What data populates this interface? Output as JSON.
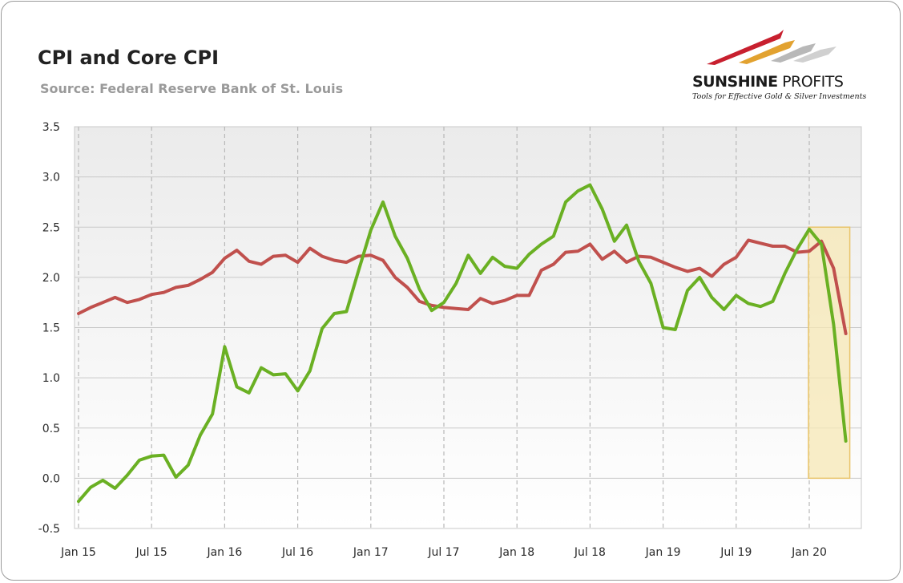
{
  "title": "CPI and Core CPI",
  "subtitle": "Source: Federal Reserve Bank of St. Louis",
  "logo": {
    "name_bold": "SUNSHINE",
    "name_regular": " PROFITS",
    "tagline": "Tools for Effective Gold & Silver Investments",
    "colors": [
      "#c8202f",
      "#e2a230",
      "#b0b0b0"
    ]
  },
  "chart_data": {
    "type": "line",
    "title": "CPI and Core CPI",
    "xlabel": "",
    "ylabel": "",
    "ylim": [
      -0.5,
      3.5
    ],
    "yticks": [
      "3.5",
      "3.0",
      "2.5",
      "2.0",
      "1.5",
      "1.0",
      "0.5",
      "0.0",
      "-0.5"
    ],
    "xticks": [
      "Jan 15",
      "Jul 15",
      "Jan 16",
      "Jul 16",
      "Jan 17",
      "Jul 17",
      "Jan 18",
      "Jul 18",
      "Jan 19",
      "Jul 19",
      "Jan 20"
    ],
    "grid": true,
    "legend": "none",
    "colors": {
      "cpi": "#6ab023",
      "core_cpi": "#c0504d",
      "highlight_fill": "#f7e8b5",
      "highlight_border": "#e9c46a",
      "plot_bg": "#f2f2f2"
    },
    "highlight": {
      "x_start": "2020-01",
      "x_end": "2020-04",
      "y_start": 0.0,
      "y_end": 2.5
    },
    "x": [
      "2015-01",
      "2015-02",
      "2015-03",
      "2015-04",
      "2015-05",
      "2015-06",
      "2015-07",
      "2015-08",
      "2015-09",
      "2015-10",
      "2015-11",
      "2015-12",
      "2016-01",
      "2016-02",
      "2016-03",
      "2016-04",
      "2016-05",
      "2016-06",
      "2016-07",
      "2016-08",
      "2016-09",
      "2016-10",
      "2016-11",
      "2016-12",
      "2017-01",
      "2017-02",
      "2017-03",
      "2017-04",
      "2017-05",
      "2017-06",
      "2017-07",
      "2017-08",
      "2017-09",
      "2017-10",
      "2017-11",
      "2017-12",
      "2018-01",
      "2018-02",
      "2018-03",
      "2018-04",
      "2018-05",
      "2018-06",
      "2018-07",
      "2018-08",
      "2018-09",
      "2018-10",
      "2018-11",
      "2018-12",
      "2019-01",
      "2019-02",
      "2019-03",
      "2019-04",
      "2019-05",
      "2019-06",
      "2019-07",
      "2019-08",
      "2019-09",
      "2019-10",
      "2019-11",
      "2019-12",
      "2020-01",
      "2020-02",
      "2020-03",
      "2020-04"
    ],
    "series": [
      {
        "key": "cpi",
        "values": [
          -0.23,
          -0.09,
          -0.02,
          -0.1,
          0.03,
          0.18,
          0.22,
          0.23,
          0.01,
          0.13,
          0.43,
          0.64,
          1.31,
          0.91,
          0.85,
          1.1,
          1.03,
          1.04,
          0.87,
          1.07,
          1.49,
          1.64,
          1.66,
          2.07,
          2.47,
          2.75,
          2.41,
          2.19,
          1.88,
          1.67,
          1.75,
          1.94,
          2.22,
          2.04,
          2.2,
          2.11,
          2.09,
          2.23,
          2.33,
          2.41,
          2.75,
          2.86,
          2.92,
          2.68,
          2.36,
          2.52,
          2.16,
          1.94,
          1.5,
          1.48,
          1.87,
          2.0,
          1.8,
          1.68,
          1.82,
          1.74,
          1.71,
          1.76,
          2.04,
          2.28,
          2.48,
          2.33,
          1.53,
          0.37
        ]
      },
      {
        "key": "core_cpi",
        "values": [
          1.64,
          1.7,
          1.75,
          1.8,
          1.75,
          1.78,
          1.83,
          1.85,
          1.9,
          1.92,
          1.98,
          2.05,
          2.19,
          2.27,
          2.16,
          2.13,
          2.21,
          2.22,
          2.15,
          2.29,
          2.21,
          2.17,
          2.15,
          2.21,
          2.22,
          2.17,
          2.0,
          1.9,
          1.76,
          1.72,
          1.7,
          1.69,
          1.68,
          1.79,
          1.74,
          1.77,
          1.82,
          1.82,
          2.07,
          2.13,
          2.25,
          2.26,
          2.33,
          2.18,
          2.26,
          2.15,
          2.21,
          2.2,
          2.15,
          2.1,
          2.06,
          2.09,
          2.01,
          2.13,
          2.2,
          2.37,
          2.34,
          2.31,
          2.31,
          2.25,
          2.26,
          2.36,
          2.09,
          1.44
        ]
      }
    ]
  }
}
